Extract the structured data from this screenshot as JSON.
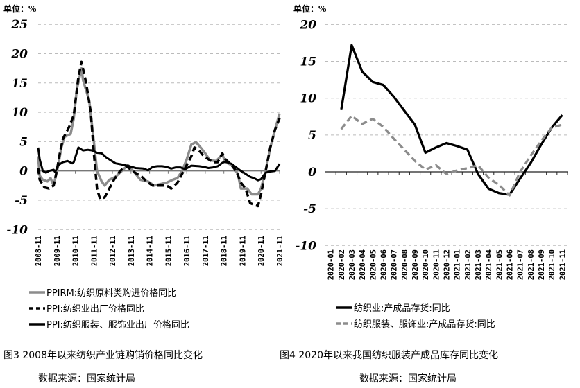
{
  "chart_data": [
    {
      "type": "line",
      "unit_label": "单位：%",
      "title": "图3 2008年以来纺织产业链购销价格同比变化",
      "source": "数据来源：国家统计局",
      "x_note": "x values are month index from 2008-11 (0) to 2021-11 (156)",
      "x_tick_labels": [
        "2008-11",
        "2009-11",
        "2010-11",
        "2011-11",
        "2012-11",
        "2013-11",
        "2014-11",
        "2015-11",
        "2016-11",
        "2017-11",
        "2018-11",
        "2019-11",
        "2020-11",
        "2021-11"
      ],
      "ylim": [
        -10,
        25
      ],
      "y_ticks": [
        25,
        20,
        15,
        10,
        5,
        0,
        -5,
        -10
      ],
      "grid": true,
      "legend_position": "bottom",
      "series": [
        {
          "name": "PPIRM:纺织原料类购进价格同比",
          "color": "#8c8c8c",
          "style": "solid",
          "points": [
            [
              0,
              2.5
            ],
            [
              1,
              -0.8
            ],
            [
              3,
              -1.5
            ],
            [
              6,
              -1.8
            ],
            [
              8,
              -1.2
            ],
            [
              10,
              -2.5
            ],
            [
              13,
              1
            ],
            [
              15,
              4
            ],
            [
              17,
              5.8
            ],
            [
              21,
              6.3
            ],
            [
              23,
              9
            ],
            [
              25,
              14
            ],
            [
              28,
              17.5
            ],
            [
              29,
              15.5
            ],
            [
              33,
              12
            ],
            [
              36,
              5
            ],
            [
              38,
              0
            ],
            [
              41,
              -1.8
            ],
            [
              43,
              -2.5
            ],
            [
              46,
              -1.5
            ],
            [
              50,
              -1
            ],
            [
              54,
              0
            ],
            [
              58,
              1
            ],
            [
              63,
              -0.5
            ],
            [
              66,
              -1.5
            ],
            [
              71,
              -1.8
            ],
            [
              75,
              -2.5
            ],
            [
              78,
              -2.3
            ],
            [
              83,
              -2
            ],
            [
              87,
              -1.5
            ],
            [
              90,
              -1.2
            ],
            [
              93,
              0
            ],
            [
              96,
              2
            ],
            [
              99,
              4.5
            ],
            [
              102,
              4.9
            ],
            [
              105,
              4
            ],
            [
              108,
              3
            ],
            [
              111,
              1.8
            ],
            [
              115,
              1.7
            ],
            [
              118,
              2.5
            ],
            [
              119,
              2.8
            ],
            [
              121,
              1.5
            ],
            [
              125,
              1
            ],
            [
              129,
              -0.5
            ],
            [
              131,
              -3
            ],
            [
              135,
              -3
            ],
            [
              138,
              -4
            ],
            [
              142,
              -4
            ],
            [
              144,
              -3
            ],
            [
              147,
              0
            ],
            [
              150,
              4
            ],
            [
              153,
              7
            ],
            [
              156,
              9.8
            ]
          ]
        },
        {
          "name": "PPI:纺织业出厂价格同比",
          "color": "#000000",
          "style": "dashed",
          "points": [
            [
              0,
              0.5
            ],
            [
              1,
              -1.5
            ],
            [
              4,
              -2.8
            ],
            [
              7,
              -3
            ],
            [
              10,
              -2.5
            ],
            [
              12,
              0
            ],
            [
              14,
              3
            ],
            [
              16,
              5.5
            ],
            [
              20,
              7.5
            ],
            [
              23,
              9.5
            ],
            [
              26,
              16
            ],
            [
              28,
              18.6
            ],
            [
              31,
              15
            ],
            [
              34,
              10
            ],
            [
              36,
              3
            ],
            [
              38,
              -3
            ],
            [
              40,
              -4.8
            ],
            [
              43,
              -4.5
            ],
            [
              46,
              -3
            ],
            [
              49,
              -1.5
            ],
            [
              53,
              0
            ],
            [
              57,
              0.8
            ],
            [
              62,
              -0.2
            ],
            [
              67,
              -1
            ],
            [
              70,
              -1.8
            ],
            [
              74,
              -2.5
            ],
            [
              78,
              -2.5
            ],
            [
              83,
              -2.5
            ],
            [
              86,
              -3
            ],
            [
              90,
              -2
            ],
            [
              93,
              -0.5
            ],
            [
              96,
              1
            ],
            [
              99,
              2.5
            ],
            [
              101,
              4
            ],
            [
              104,
              3.5
            ],
            [
              107,
              2.5
            ],
            [
              110,
              2
            ],
            [
              113,
              1.5
            ],
            [
              116,
              1.5
            ],
            [
              119,
              3
            ],
            [
              121,
              2
            ],
            [
              125,
              1
            ],
            [
              128,
              0
            ],
            [
              131,
              -2
            ],
            [
              134,
              -3
            ],
            [
              137,
              -5.5
            ],
            [
              140,
              -5.8
            ],
            [
              142,
              -6
            ],
            [
              144,
              -4
            ],
            [
              147,
              0
            ],
            [
              150,
              4
            ],
            [
              153,
              7
            ],
            [
              156,
              9
            ]
          ]
        },
        {
          "name": "PPI:纺织服装、服饰业出厂价格同比",
          "color": "#000000",
          "style": "solid",
          "points": [
            [
              0,
              4
            ],
            [
              1,
              2
            ],
            [
              3,
              0
            ],
            [
              5,
              -0.3
            ],
            [
              7,
              0
            ],
            [
              10,
              0.2
            ],
            [
              11,
              -0.2
            ],
            [
              13,
              1
            ],
            [
              16,
              1.5
            ],
            [
              19,
              1.7
            ],
            [
              22,
              1.3
            ],
            [
              23,
              1.5
            ],
            [
              26,
              4
            ],
            [
              29,
              3.5
            ],
            [
              32,
              3.6
            ],
            [
              35,
              3.5
            ],
            [
              38,
              3.1
            ],
            [
              41,
              3
            ],
            [
              44,
              2.3
            ],
            [
              47,
              1.8
            ],
            [
              50,
              1.3
            ],
            [
              54,
              1.1
            ],
            [
              59,
              0.8
            ],
            [
              63,
              0.5
            ],
            [
              68,
              0.4
            ],
            [
              71,
              0.1
            ],
            [
              74,
              0.7
            ],
            [
              77,
              0.8
            ],
            [
              80,
              0.8
            ],
            [
              83,
              0.7
            ],
            [
              86,
              0.4
            ],
            [
              89,
              0.6
            ],
            [
              92,
              0.6
            ],
            [
              95,
              0.3
            ],
            [
              99,
              0.9
            ],
            [
              104,
              0.8
            ],
            [
              107,
              0.7
            ],
            [
              110,
              0.5
            ],
            [
              113,
              0.6
            ],
            [
              116,
              0.8
            ],
            [
              119,
              1.4
            ],
            [
              121,
              1.6
            ],
            [
              125,
              1.2
            ],
            [
              128,
              0.6
            ],
            [
              131,
              0
            ],
            [
              134,
              -0.5
            ],
            [
              137,
              -1
            ],
            [
              140,
              -1.3
            ],
            [
              142,
              -1.6
            ],
            [
              144,
              -1.4
            ],
            [
              147,
              -0.3
            ],
            [
              150,
              -0.1
            ],
            [
              153,
              0
            ],
            [
              156,
              1.2
            ]
          ]
        }
      ]
    },
    {
      "type": "line",
      "unit_label": "单位：%",
      "title": "图4 2020年以来我国纺织服装产成品库存同比变化",
      "source": "数据来源：国家统计局",
      "categories": [
        "2020-01",
        "2020-02",
        "2020-03",
        "2020-04",
        "2020-05",
        "2020-06",
        "2020-07",
        "2020-08",
        "2020-09",
        "2020-10",
        "2020-11",
        "2020-12",
        "2021-01",
        "2021-02",
        "2021-03",
        "2021-04",
        "2021-05",
        "2021-06",
        "2021-07",
        "2021-08",
        "2021-09",
        "2021-10",
        "2021-11"
      ],
      "ylim": [
        -10,
        20
      ],
      "y_ticks": [
        20,
        15,
        10,
        5,
        0,
        -5,
        -10
      ],
      "grid": true,
      "legend_position": "bottom",
      "series": [
        {
          "name": "纺织业:产成品存货:同比",
          "color": "#000000",
          "style": "solid",
          "values": [
            null,
            8.4,
            17.2,
            13.6,
            12.2,
            11.8,
            10.2,
            8.3,
            6.4,
            2.6,
            3.3,
            3.9,
            3.5,
            3.0,
            -0.3,
            -2.3,
            -2.9,
            -3.1,
            -0.9,
            1.2,
            3.7,
            6.0,
            7.7
          ]
        },
        {
          "name": "纺织服装、服饰业:产成品存货:同比",
          "color": "#8c8c8c",
          "style": "dashed",
          "values": [
            null,
            5.8,
            7.6,
            6.5,
            7.2,
            6.1,
            4.5,
            3.0,
            1.5,
            0.3,
            0.9,
            -0.3,
            0.2,
            0.5,
            0.9,
            -0.8,
            -1.8,
            -3.2,
            0.0,
            2.2,
            4.2,
            6.0,
            6.4
          ]
        }
      ]
    }
  ]
}
